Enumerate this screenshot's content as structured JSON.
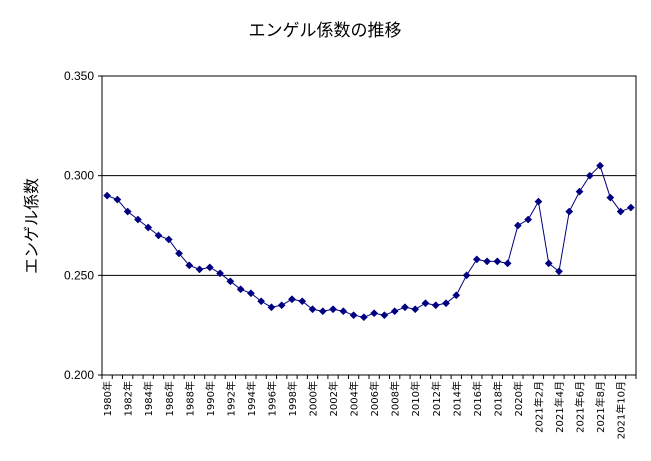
{
  "chart_data": {
    "type": "line",
    "title": "エンゲル係数の推移",
    "xlabel": "",
    "ylabel": "エンゲル係数",
    "ylim": [
      0.2,
      0.35
    ],
    "yticks": [
      "0.200",
      "0.250",
      "0.300",
      "0.350"
    ],
    "grid": "horizontal major lines at 0.250 and 0.300",
    "legend": "none",
    "color": "#000080",
    "categories": [
      "1980年",
      "1981年",
      "1982年",
      "1983年",
      "1984年",
      "1985年",
      "1986年",
      "1987年",
      "1988年",
      "1989年",
      "1990年",
      "1991年",
      "1992年",
      "1993年",
      "1994年",
      "1995年",
      "1996年",
      "1997年",
      "1998年",
      "1999年",
      "2000年",
      "2001年",
      "2002年",
      "2003年",
      "2004年",
      "2005年",
      "2006年",
      "2007年",
      "2008年",
      "2009年",
      "2010年",
      "2011年",
      "2012年",
      "2013年",
      "2014年",
      "2015年",
      "2016年",
      "2017年",
      "2018年",
      "2019年",
      "2020年",
      "2021年1月",
      "2021年2月",
      "2021年3月",
      "2021年4月",
      "2021年5月",
      "2021年6月",
      "2021年7月",
      "2021年8月",
      "2021年9月",
      "2021年10月",
      "2021年11月"
    ],
    "tick_labels": [
      "1980年",
      "",
      "1982年",
      "",
      "1984年",
      "",
      "1986年",
      "",
      "1988年",
      "",
      "1990年",
      "",
      "1992年",
      "",
      "1994年",
      "",
      "1996年",
      "",
      "1998年",
      "",
      "2000年",
      "",
      "2002年",
      "",
      "2004年",
      "",
      "2006年",
      "",
      "2008年",
      "",
      "2010年",
      "",
      "2012年",
      "",
      "2014年",
      "",
      "2016年",
      "",
      "2018年",
      "",
      "2020年",
      "",
      "2021年2月",
      "",
      "2021年4月",
      "",
      "2021年6月",
      "",
      "2021年8月",
      "",
      "2021年10月",
      ""
    ],
    "values": [
      0.29,
      0.288,
      0.282,
      0.278,
      0.274,
      0.27,
      0.268,
      0.261,
      0.255,
      0.253,
      0.254,
      0.251,
      0.247,
      0.243,
      0.241,
      0.237,
      0.234,
      0.235,
      0.238,
      0.237,
      0.233,
      0.232,
      0.233,
      0.232,
      0.23,
      0.229,
      0.231,
      0.23,
      0.232,
      0.234,
      0.233,
      0.236,
      0.235,
      0.236,
      0.24,
      0.25,
      0.258,
      0.257,
      0.257,
      0.256,
      0.275,
      0.278,
      0.287,
      0.256,
      0.252,
      0.282,
      0.292,
      0.3,
      0.305,
      0.289,
      0.282,
      0.284
    ]
  }
}
